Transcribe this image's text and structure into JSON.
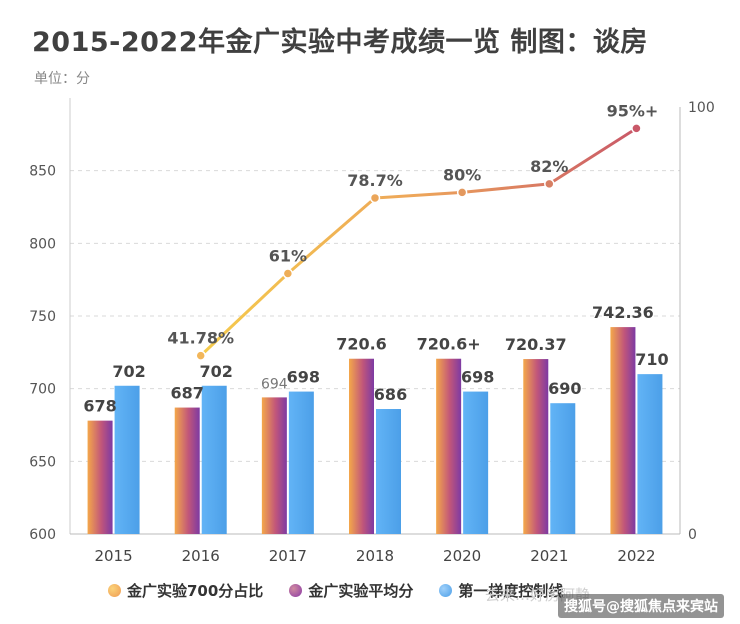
{
  "title": "2015-2022年金广实验中考成绩一览 制图：谈房",
  "unit_label": "单位：分",
  "watermark": "搜狐号@搜狐焦点来宾站",
  "watermark_faint": "去来…好房阿静",
  "colors": {
    "bar_pass": [
      "#f3a04a",
      "#7c3a9e"
    ],
    "bar_avg": [
      "#f29a4a",
      "#8a3aa6"
    ],
    "bar_line": "#5aa8f0",
    "line_start": "#f5c24a",
    "line_end": "#c9596a"
  },
  "chart_data": {
    "type": "bar",
    "categories": [
      "2015",
      "2016",
      "2017",
      "2018",
      "2020",
      "2021",
      "2022"
    ],
    "series": [
      {
        "name": "金广实验平均分",
        "values": [
          678,
          687,
          694,
          720.6,
          720.6,
          720.37,
          742.36
        ],
        "labels": [
          "678",
          "687",
          "694",
          "720.6",
          "720.6+",
          "720.37",
          "742.36"
        ]
      },
      {
        "name": "第一梯度控制线",
        "values": [
          702,
          702,
          698,
          686,
          698,
          690,
          710
        ],
        "labels": [
          "702",
          "702",
          "698",
          "686",
          "698",
          "690",
          "710"
        ]
      }
    ],
    "line_series": {
      "name": "金广实验700分占比",
      "axis": "right",
      "start_index": 1,
      "values": [
        41.78,
        61,
        78.7,
        80,
        82,
        95
      ],
      "labels": [
        "41.78%",
        "61%",
        "78.7%",
        "80%",
        "82%",
        "95%+"
      ]
    },
    "ylim": [
      600,
      900
    ],
    "yticks": [
      600,
      650,
      700,
      750,
      800,
      850
    ],
    "y2lim": [
      0,
      100
    ],
    "y2ticks": [
      0,
      100
    ],
    "legend": [
      "金广实验700分占比",
      "金广实验平均分",
      "第一梯度控制线"
    ],
    "legend_position": "bottom"
  }
}
